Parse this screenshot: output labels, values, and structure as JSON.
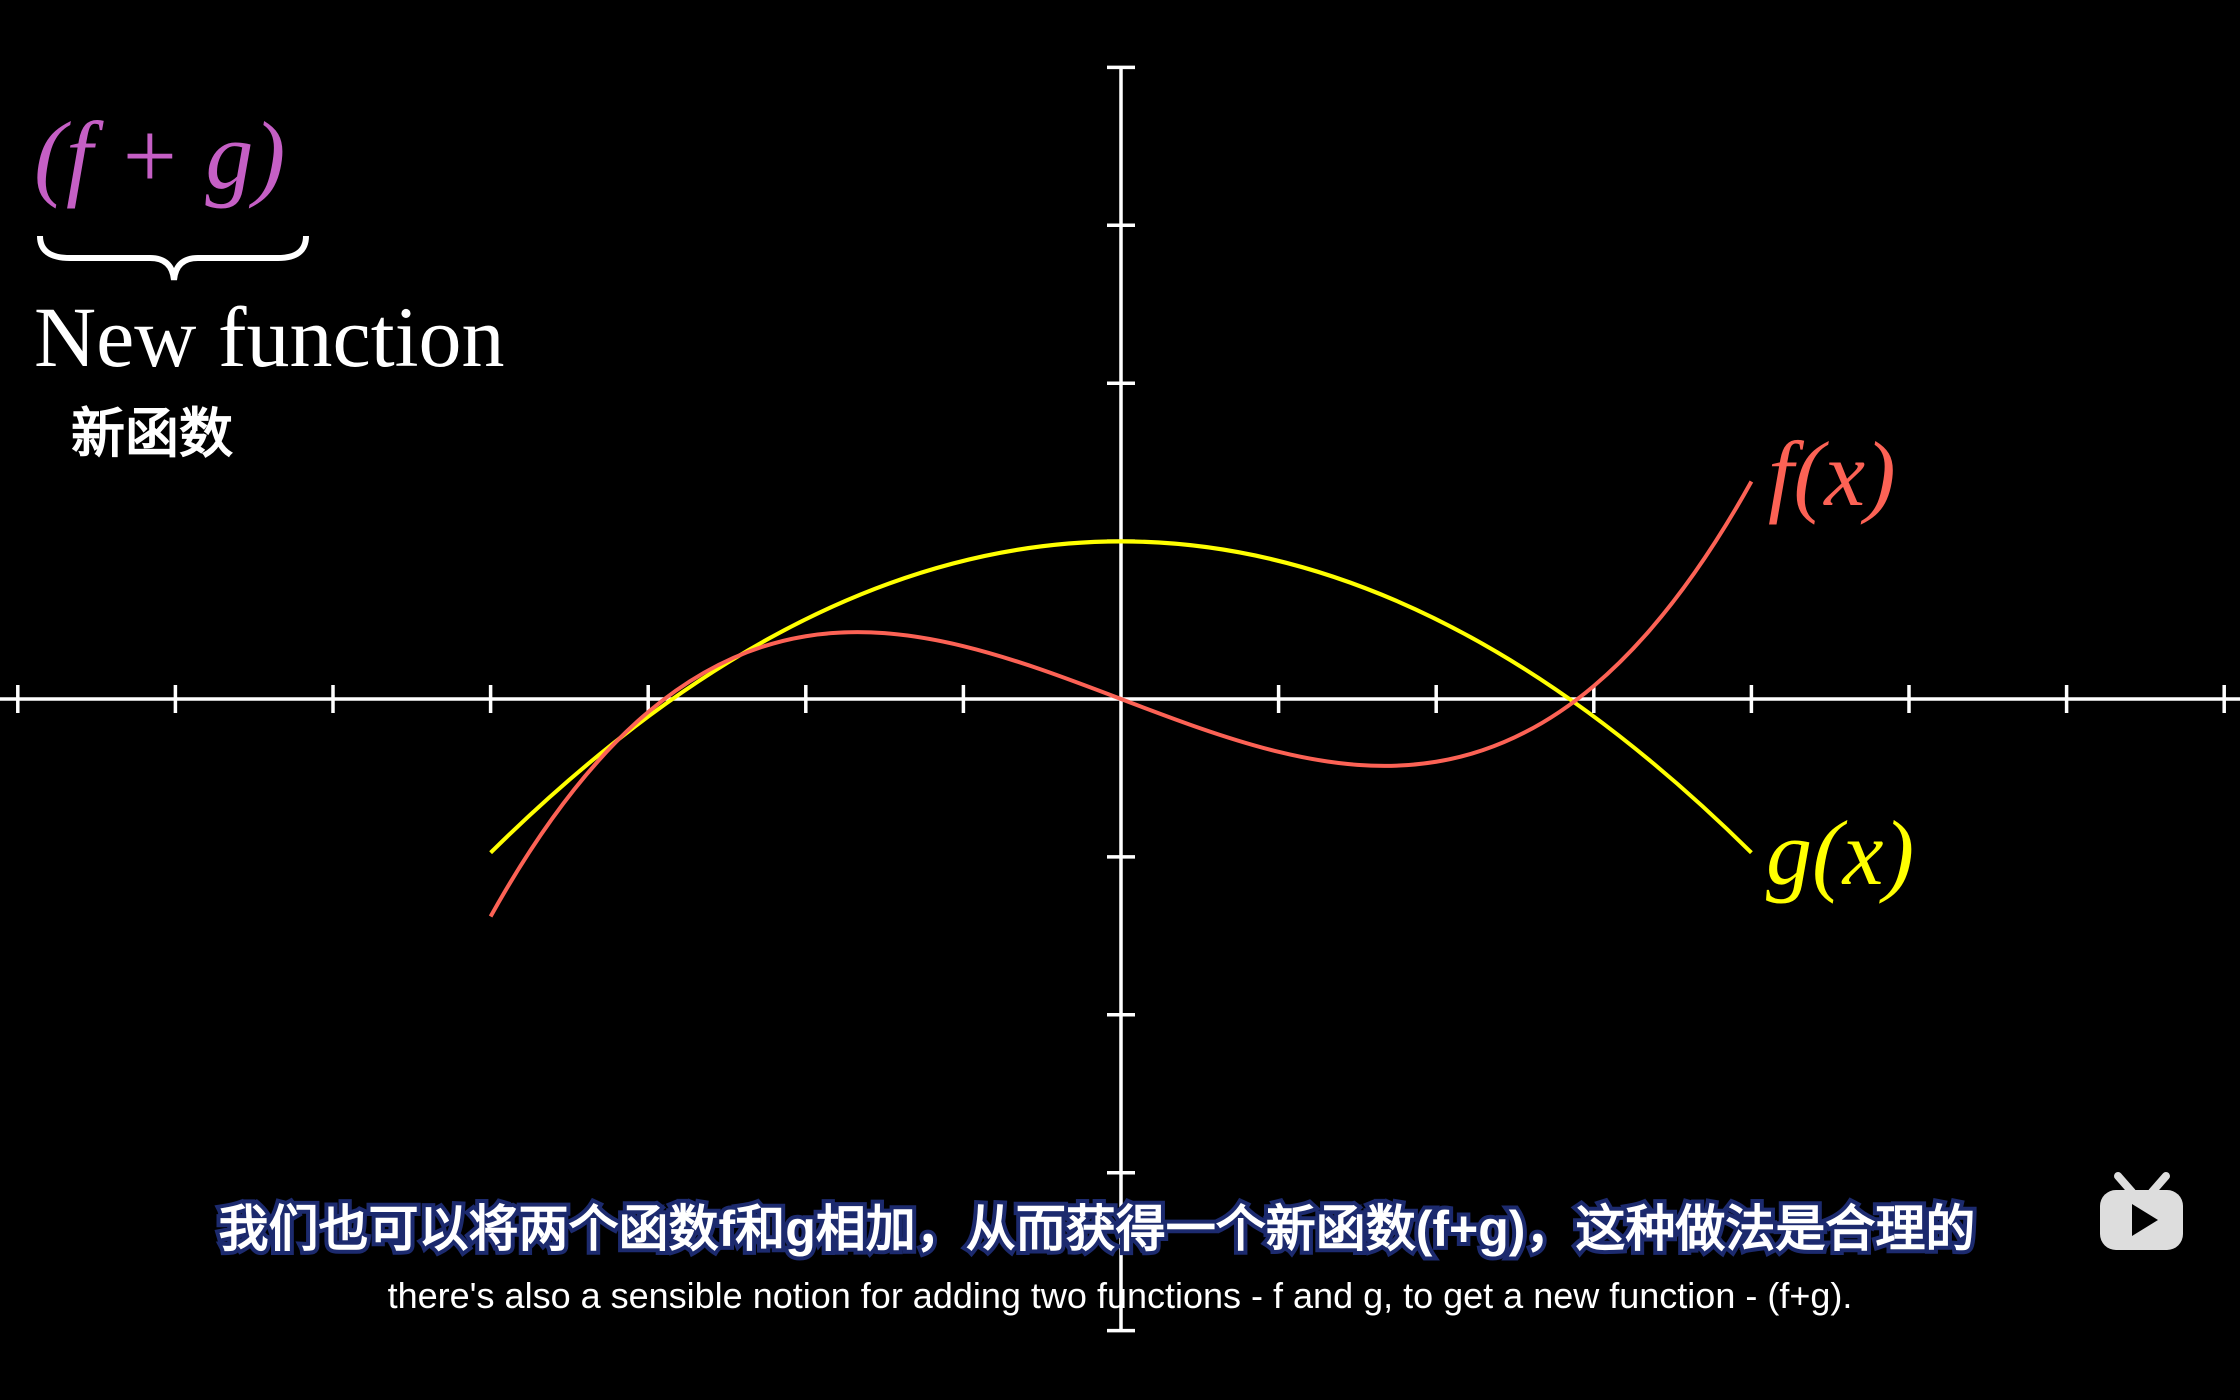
{
  "formula": "(f + g)",
  "brace_label": "New function",
  "brace_label_translation": "新函数",
  "curves": [
    {
      "label": "f(x)"
    },
    {
      "label": "g(x)"
    }
  ],
  "subtitles": {
    "chinese": "我们也可以将两个函数f和g相加，从而获得一个新函数(f+g)，这种做法是合理的",
    "english": "there's also a sensible notion for adding two functions - f and g, to get a new function - (f+g)."
  }
}
